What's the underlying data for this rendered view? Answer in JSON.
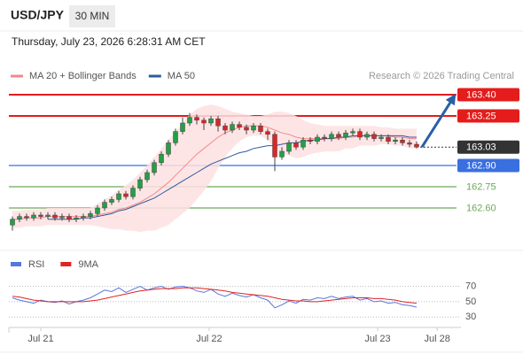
{
  "header": {
    "symbol": "USD/JPY",
    "interval": "30 MIN",
    "datetime": "Thursday, July 23, 2026 6:28:31 AM CET"
  },
  "chart_data": [
    {
      "type": "candlestick",
      "source": "Research © 2026 Trading Central",
      "xlim": [
        -0.5,
        63.25
      ],
      "ylim": [
        162.35,
        163.475
      ],
      "up_color": "#22a045",
      "down_color": "#e02424",
      "candles": {
        "open": [
          162.48,
          162.52,
          162.54,
          162.53,
          162.55,
          162.54,
          162.55,
          162.53,
          162.54,
          162.52,
          162.53,
          162.54,
          162.56,
          162.6,
          162.64,
          162.66,
          162.7,
          162.68,
          162.74,
          162.8,
          162.85,
          162.92,
          162.98,
          163.06,
          163.14,
          163.2,
          163.24,
          163.22,
          163.2,
          163.23,
          163.18,
          163.15,
          163.19,
          163.17,
          163.15,
          163.18,
          163.14,
          163.12,
          162.96,
          163.0,
          163.06,
          163.03,
          163.08,
          163.07,
          163.1,
          163.09,
          163.12,
          163.1,
          163.13,
          163.14,
          163.1,
          163.12,
          163.09,
          163.1,
          163.07,
          163.08,
          163.06,
          163.05
        ],
        "high": [
          162.54,
          162.56,
          162.56,
          162.57,
          162.57,
          162.57,
          162.57,
          162.56,
          162.56,
          162.55,
          162.56,
          162.58,
          162.62,
          162.66,
          162.68,
          162.72,
          162.72,
          162.76,
          162.82,
          162.87,
          162.94,
          163.0,
          163.08,
          163.16,
          163.24,
          163.27,
          163.26,
          163.24,
          163.25,
          163.25,
          163.2,
          163.21,
          163.21,
          163.19,
          163.2,
          163.2,
          163.16,
          163.14,
          163.03,
          163.08,
          163.08,
          163.1,
          163.1,
          163.12,
          163.12,
          163.14,
          163.14,
          163.15,
          163.16,
          163.16,
          163.14,
          163.14,
          163.12,
          163.12,
          163.1,
          163.1,
          163.08,
          163.07
        ],
        "low": [
          162.44,
          162.5,
          162.51,
          162.51,
          162.52,
          162.52,
          162.51,
          162.51,
          162.5,
          162.5,
          162.51,
          162.52,
          162.54,
          162.58,
          162.62,
          162.64,
          162.66,
          162.66,
          162.72,
          162.78,
          162.83,
          162.9,
          162.96,
          163.04,
          163.12,
          163.18,
          163.19,
          163.15,
          163.18,
          163.14,
          163.12,
          163.13,
          163.15,
          163.12,
          163.13,
          163.12,
          163.08,
          162.86,
          162.94,
          162.98,
          163.01,
          163.01,
          163.05,
          163.05,
          163.07,
          163.07,
          163.08,
          163.08,
          163.11,
          163.08,
          163.08,
          163.07,
          163.07,
          163.05,
          163.05,
          163.04,
          163.03,
          163.02
        ],
        "close": [
          162.52,
          162.54,
          162.53,
          162.55,
          162.54,
          162.55,
          162.53,
          162.54,
          162.52,
          162.53,
          162.54,
          162.56,
          162.6,
          162.64,
          162.66,
          162.7,
          162.68,
          162.74,
          162.8,
          162.85,
          162.92,
          162.98,
          163.06,
          163.14,
          163.2,
          163.24,
          163.22,
          163.2,
          163.23,
          163.18,
          163.15,
          163.19,
          163.17,
          163.15,
          163.18,
          163.14,
          163.12,
          162.96,
          163.0,
          163.06,
          163.03,
          163.08,
          163.07,
          163.1,
          163.09,
          163.12,
          163.1,
          163.13,
          163.14,
          163.1,
          163.12,
          163.09,
          163.1,
          163.07,
          163.08,
          163.06,
          163.05,
          163.03
        ]
      },
      "series": [
        {
          "name": "MA 20 + Bollinger Bands",
          "color": "#f08a8a",
          "band_color": "#fde0e2",
          "values": [
            162.52,
            162.52,
            162.53,
            162.53,
            162.53,
            162.54,
            162.54,
            162.54,
            162.54,
            162.54,
            162.54,
            162.54,
            162.55,
            162.56,
            162.57,
            162.59,
            162.6,
            162.62,
            162.64,
            162.67,
            162.7,
            162.74,
            162.78,
            162.83,
            162.88,
            162.93,
            162.98,
            163.02,
            163.06,
            163.1,
            163.13,
            163.15,
            163.17,
            163.18,
            163.18,
            163.18,
            163.17,
            163.15,
            163.13,
            163.12,
            163.1,
            163.09,
            163.09,
            163.09,
            163.09,
            163.09,
            163.09,
            163.1,
            163.1,
            163.11,
            163.11,
            163.11,
            163.11,
            163.11,
            163.1,
            163.1,
            163.09,
            163.09
          ],
          "upper": [
            162.58,
            162.58,
            162.59,
            162.59,
            162.59,
            162.6,
            162.6,
            162.6,
            162.6,
            162.6,
            162.6,
            162.6,
            162.63,
            162.66,
            162.69,
            162.73,
            162.76,
            162.8,
            162.85,
            162.9,
            162.96,
            163.02,
            163.08,
            163.14,
            163.2,
            163.26,
            163.3,
            163.32,
            163.33,
            163.32,
            163.3,
            163.28,
            163.27,
            163.26,
            163.25,
            163.25,
            163.26,
            163.28,
            163.28,
            163.27,
            163.25,
            163.22,
            163.2,
            163.19,
            163.18,
            163.18,
            163.18,
            163.18,
            163.18,
            163.18,
            163.18,
            163.18,
            163.17,
            163.17,
            163.16,
            163.16,
            163.16,
            163.16
          ],
          "lower": [
            162.46,
            162.46,
            162.47,
            162.47,
            162.47,
            162.48,
            162.48,
            162.48,
            162.48,
            162.48,
            162.48,
            162.48,
            162.47,
            162.46,
            162.45,
            162.45,
            162.44,
            162.44,
            162.43,
            162.44,
            162.44,
            162.46,
            162.48,
            162.52,
            162.56,
            162.6,
            162.66,
            162.72,
            162.79,
            162.88,
            162.96,
            163.02,
            163.07,
            163.1,
            163.11,
            163.11,
            163.08,
            163.02,
            162.98,
            162.97,
            162.95,
            162.96,
            162.98,
            162.99,
            163.0,
            163.0,
            163.0,
            163.02,
            163.02,
            163.04,
            163.04,
            163.04,
            163.05,
            163.05,
            163.04,
            163.04,
            163.02,
            163.02
          ]
        },
        {
          "name": "MA 50",
          "color": "#2f5a9e",
          "values": [
            null,
            null,
            null,
            null,
            null,
            162.52,
            162.52,
            162.52,
            162.52,
            162.52,
            162.53,
            162.53,
            162.54,
            162.55,
            162.56,
            162.58,
            162.59,
            162.61,
            162.63,
            162.65,
            162.67,
            162.7,
            162.73,
            162.76,
            162.79,
            162.82,
            162.85,
            162.88,
            162.91,
            162.93,
            162.95,
            162.97,
            162.99,
            163.0,
            163.02,
            163.03,
            163.04,
            163.04,
            163.05,
            163.06,
            163.06,
            163.07,
            163.08,
            163.08,
            163.09,
            163.09,
            163.1,
            163.1,
            163.11,
            163.11,
            163.11,
            163.11,
            163.11,
            163.11,
            163.11,
            163.11,
            163.1,
            163.1
          ]
        }
      ],
      "levels": {
        "values": [
          163.4,
          163.25,
          163.03,
          162.9,
          162.75,
          162.6
        ],
        "value_labels": [
          "163.40",
          "163.25",
          "163.03",
          "162.90",
          "162.75",
          "162.60"
        ],
        "colors": [
          "#e41c1c",
          "#e41c1c",
          "#333333",
          "#3a6fe0",
          "#6aaa5a",
          "#6aaa5a"
        ],
        "styles": [
          "solid",
          "solid",
          "dotted",
          "solid",
          "solid",
          "solid"
        ],
        "label_box": [
          true,
          true,
          true,
          true,
          false,
          false
        ]
      }
    },
    {
      "type": "line",
      "xlim": [
        -0.5,
        63.25
      ],
      "xticks": [
        {
          "value": 4,
          "label": "Jul 21"
        },
        {
          "value": 27.75,
          "label": "Jul 22"
        },
        {
          "value": 51.5,
          "label": "Jul 23"
        },
        {
          "value": 59.9,
          "label": "Jul 28"
        }
      ],
      "ylim": [
        20,
        82
      ],
      "yticks": [
        70,
        50,
        30
      ],
      "grid": true,
      "series": [
        {
          "name": "RSI",
          "color": "#5577dd",
          "values": [
            55,
            52,
            50,
            48,
            52,
            50,
            49,
            51,
            47,
            50,
            52,
            55,
            60,
            65,
            63,
            68,
            62,
            66,
            70,
            65,
            68,
            70,
            66,
            69,
            70,
            68,
            64,
            62,
            66,
            60,
            57,
            61,
            58,
            56,
            59,
            55,
            52,
            42,
            46,
            51,
            48,
            53,
            52,
            55,
            54,
            57,
            54,
            56,
            57,
            52,
            54,
            50,
            51,
            48,
            49,
            46,
            45,
            43
          ]
        },
        {
          "name": "9MA",
          "color": "#e02424",
          "values": [
            57,
            56,
            54,
            52,
            51,
            50,
            50,
            50,
            50,
            50,
            50,
            51,
            52,
            54,
            56,
            58,
            60,
            62,
            64,
            65,
            66,
            67,
            67,
            67,
            68,
            68,
            68,
            67,
            66,
            65,
            64,
            62,
            61,
            60,
            59,
            58,
            57,
            55,
            53,
            52,
            51,
            51,
            50,
            50,
            51,
            52,
            53,
            54,
            55,
            55,
            55,
            54,
            54,
            53,
            52,
            50,
            49,
            48
          ]
        }
      ]
    }
  ]
}
